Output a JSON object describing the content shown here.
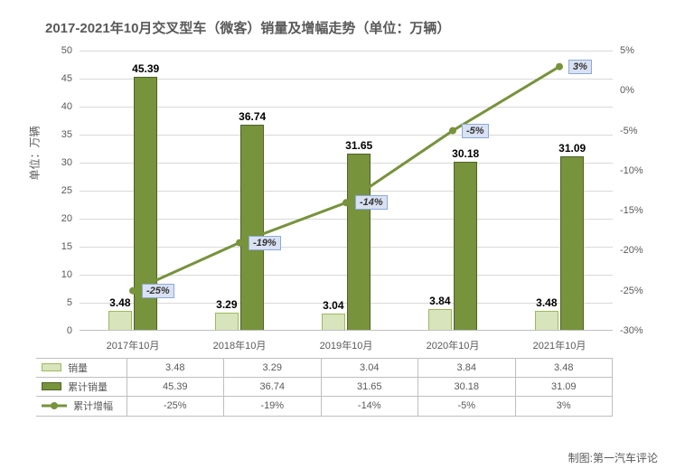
{
  "title": "2017-2021年10月交叉型车（微客）销量及增幅走势（单位：万辆）",
  "y_label_left": "单位：万辆",
  "credit": "制图:第一汽车评论",
  "categories": [
    "2017年10月",
    "2018年10月",
    "2019年10月",
    "2020年10月",
    "2021年10月"
  ],
  "series": {
    "sales": {
      "name": "销量",
      "values": [
        3.48,
        3.29,
        3.04,
        3.84,
        3.48
      ],
      "labels": [
        "3.48",
        "3.29",
        "3.04",
        "3.84",
        "3.48"
      ],
      "fill": "#d8e4bc",
      "border": "#9bbb59"
    },
    "cumulative": {
      "name": "累计销量",
      "values": [
        45.39,
        36.74,
        31.65,
        30.18,
        31.09
      ],
      "labels": [
        "45.39",
        "36.74",
        "31.65",
        "30.18",
        "31.09"
      ],
      "fill": "#77933c",
      "border": "#4f6228"
    },
    "growth": {
      "name": "累计增幅",
      "values": [
        -25,
        -19,
        -14,
        -5,
        3
      ],
      "labels": [
        "-25%",
        "-19%",
        "-14%",
        "-5%",
        "3%"
      ],
      "line_color": "#77933c",
      "marker_color": "#77933c"
    }
  },
  "y_left": {
    "min": 0,
    "max": 50,
    "step": 5,
    "ticks": [
      0,
      5,
      10,
      15,
      20,
      25,
      30,
      35,
      40,
      45,
      50
    ]
  },
  "y_right": {
    "min": -30,
    "max": 5,
    "step": 5,
    "ticks": [
      -30,
      -25,
      -20,
      -15,
      -10,
      -5,
      0,
      5
    ]
  },
  "bar_width_pct": 22,
  "line_width": 3,
  "marker_size": 8,
  "label_box": {
    "bg": "#d9e1f2",
    "border": "#8ea9db"
  },
  "colors": {
    "grid": "#d9d9d9",
    "text": "#595959",
    "axis": "#bfbfbf"
  }
}
